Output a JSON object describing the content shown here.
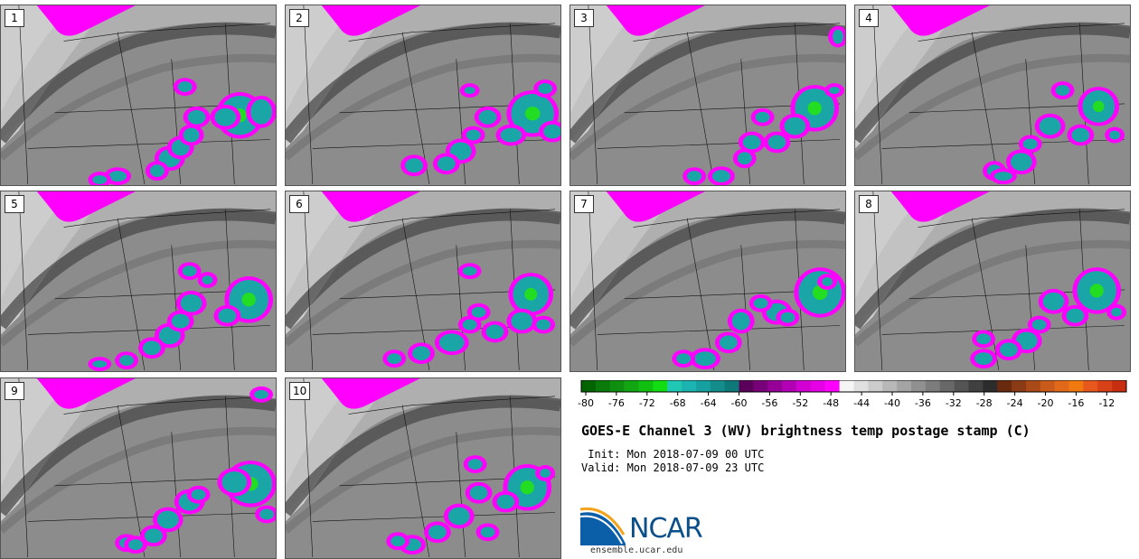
{
  "panels": [
    {
      "label": "1",
      "cells": [
        [
          266,
          128,
          22,
          22
        ],
        [
          290,
          124,
          12,
          14
        ],
        [
          250,
          130,
          12,
          10
        ],
        [
          188,
          176,
          12,
          10
        ],
        [
          200,
          164,
          10,
          9
        ],
        [
          212,
          150,
          9,
          8
        ],
        [
          174,
          190,
          8,
          7
        ],
        [
          130,
          196,
          10,
          6
        ],
        [
          110,
          200,
          8,
          5
        ],
        [
          205,
          96,
          8,
          6
        ],
        [
          218,
          130,
          10,
          8
        ]
      ]
    },
    {
      "label": "2",
      "cells": [
        [
          590,
          126,
          24,
          22
        ],
        [
          612,
          146,
          10,
          8
        ],
        [
          566,
          150,
          12,
          8
        ],
        [
          510,
          168,
          12,
          10
        ],
        [
          494,
          182,
          10,
          8
        ],
        [
          458,
          184,
          10,
          8
        ],
        [
          540,
          130,
          10,
          8
        ],
        [
          524,
          150,
          8,
          6
        ],
        [
          604,
          98,
          8,
          6
        ],
        [
          520,
          100,
          6,
          4
        ]
      ]
    },
    {
      "label": "3",
      "cells": [
        [
          902,
          120,
          22,
          22
        ],
        [
          880,
          140,
          12,
          10
        ],
        [
          860,
          158,
          10,
          8
        ],
        [
          832,
          158,
          10,
          8
        ],
        [
          824,
          176,
          8,
          7
        ],
        [
          798,
          196,
          10,
          7
        ],
        [
          768,
          196,
          8,
          6
        ],
        [
          844,
          130,
          8,
          6
        ],
        [
          924,
          100,
          6,
          4
        ],
        [
          928,
          40,
          6,
          8
        ]
      ]
    },
    {
      "label": "4",
      "cells": [
        [
          1216,
          118,
          18,
          18
        ],
        [
          1196,
          150,
          10,
          8
        ],
        [
          1162,
          140,
          12,
          10
        ],
        [
          1130,
          180,
          12,
          10
        ],
        [
          1100,
          190,
          8,
          7
        ],
        [
          1140,
          160,
          8,
          6
        ],
        [
          1176,
          100,
          8,
          6
        ],
        [
          1110,
          196,
          10,
          5
        ],
        [
          1234,
          150,
          6,
          5
        ]
      ]
    },
    {
      "label": "5",
      "cells": [
        [
          276,
          332,
          22,
          22
        ],
        [
          252,
          350,
          10,
          8
        ],
        [
          212,
          336,
          12,
          10
        ],
        [
          188,
          372,
          12,
          10
        ],
        [
          168,
          386,
          10,
          8
        ],
        [
          140,
          400,
          8,
          6
        ],
        [
          200,
          356,
          10,
          8
        ],
        [
          210,
          300,
          8,
          6
        ],
        [
          230,
          310,
          6,
          5
        ],
        [
          110,
          404,
          8,
          4
        ]
      ]
    },
    {
      "label": "6",
      "cells": [
        [
          588,
          326,
          20,
          20
        ],
        [
          578,
          356,
          12,
          10
        ],
        [
          548,
          368,
          10,
          8
        ],
        [
          500,
          380,
          14,
          10
        ],
        [
          520,
          360,
          8,
          6
        ],
        [
          466,
          392,
          10,
          8
        ],
        [
          436,
          398,
          8,
          6
        ],
        [
          530,
          346,
          8,
          6
        ],
        [
          520,
          300,
          8,
          5
        ],
        [
          602,
          360,
          8,
          6
        ]
      ]
    },
    {
      "label": "7",
      "cells": [
        [
          908,
          324,
          24,
          24
        ],
        [
          860,
          346,
          12,
          10
        ],
        [
          820,
          356,
          10,
          10
        ],
        [
          806,
          380,
          10,
          8
        ],
        [
          780,
          398,
          12,
          8
        ],
        [
          756,
          398,
          8,
          6
        ],
        [
          842,
          336,
          8,
          6
        ],
        [
          872,
          352,
          8,
          6
        ],
        [
          916,
          312,
          6,
          5
        ]
      ]
    },
    {
      "label": "8",
      "cells": [
        [
          1214,
          322,
          22,
          22
        ],
        [
          1190,
          350,
          10,
          8
        ],
        [
          1166,
          334,
          12,
          10
        ],
        [
          1136,
          378,
          12,
          10
        ],
        [
          1116,
          388,
          10,
          8
        ],
        [
          1088,
          398,
          10,
          7
        ],
        [
          1150,
          360,
          8,
          6
        ],
        [
          1088,
          376,
          8,
          6
        ],
        [
          1236,
          346,
          6,
          5
        ]
      ]
    },
    {
      "label": "9",
      "cells": [
        [
          278,
          536,
          24,
          22
        ],
        [
          260,
          534,
          14,
          12
        ],
        [
          210,
          556,
          12,
          10
        ],
        [
          186,
          576,
          12,
          10
        ],
        [
          170,
          594,
          10,
          8
        ],
        [
          140,
          602,
          8,
          6
        ],
        [
          220,
          548,
          8,
          6
        ],
        [
          296,
          570,
          8,
          6
        ],
        [
          290,
          436,
          8,
          5
        ],
        [
          150,
          604,
          8,
          6
        ]
      ]
    },
    {
      "label": "10",
      "cells": [
        [
          584,
          540,
          22,
          22
        ],
        [
          560,
          556,
          10,
          8
        ],
        [
          530,
          546,
          10,
          8
        ],
        [
          508,
          572,
          12,
          10
        ],
        [
          484,
          590,
          10,
          8
        ],
        [
          456,
          604,
          10,
          7
        ],
        [
          526,
          514,
          8,
          6
        ],
        [
          540,
          590,
          8,
          6
        ],
        [
          604,
          524,
          6,
          5
        ],
        [
          440,
          600,
          8,
          6
        ]
      ]
    }
  ],
  "colorbar": {
    "ticks": [
      "-80",
      "-76",
      "-72",
      "-68",
      "-64",
      "-60",
      "-56",
      "-52",
      "-48",
      "-44",
      "-40",
      "-36",
      "-32",
      "-28",
      "-24",
      "-20",
      "-16",
      "-12"
    ],
    "colors": [
      "#006400",
      "#0a7a0a",
      "#0f8f0f",
      "#12a612",
      "#10c010",
      "#12dc12",
      "#20c8b4",
      "#1bb4b0",
      "#17a0a0",
      "#138c8c",
      "#0f7878",
      "#5a005a",
      "#780078",
      "#960096",
      "#b400b4",
      "#d200d2",
      "#e600e6",
      "#ff00ff",
      "#f5f5f5",
      "#e0e0e0",
      "#cccccc",
      "#b8b8b8",
      "#a4a4a4",
      "#909090",
      "#7c7c7c",
      "#686868",
      "#545454",
      "#404040",
      "#2c2c2c",
      "#6a2a10",
      "#8a3a14",
      "#aa4a18",
      "#c85a1a",
      "#e06a1a",
      "#f07a10",
      "#e8581c",
      "#d84018",
      "#c82e10"
    ]
  },
  "title": "GOES-E Channel 3 (WV) brightness temp postage stamp (C)",
  "init": " Init: Mon 2018-07-09 00 UTC",
  "valid": "Valid: Mon 2018-07-09 23 UTC",
  "logo": {
    "text": "NCAR",
    "url": "ensemble.ucar.edu"
  },
  "colors": {
    "magenta": "#ff00ff",
    "teal": "#1aa6a6",
    "green": "#22dd22",
    "map_bg": "#8c8c8c",
    "dry_band": "#4a4a4a",
    "moist": "#d8d8d8"
  }
}
